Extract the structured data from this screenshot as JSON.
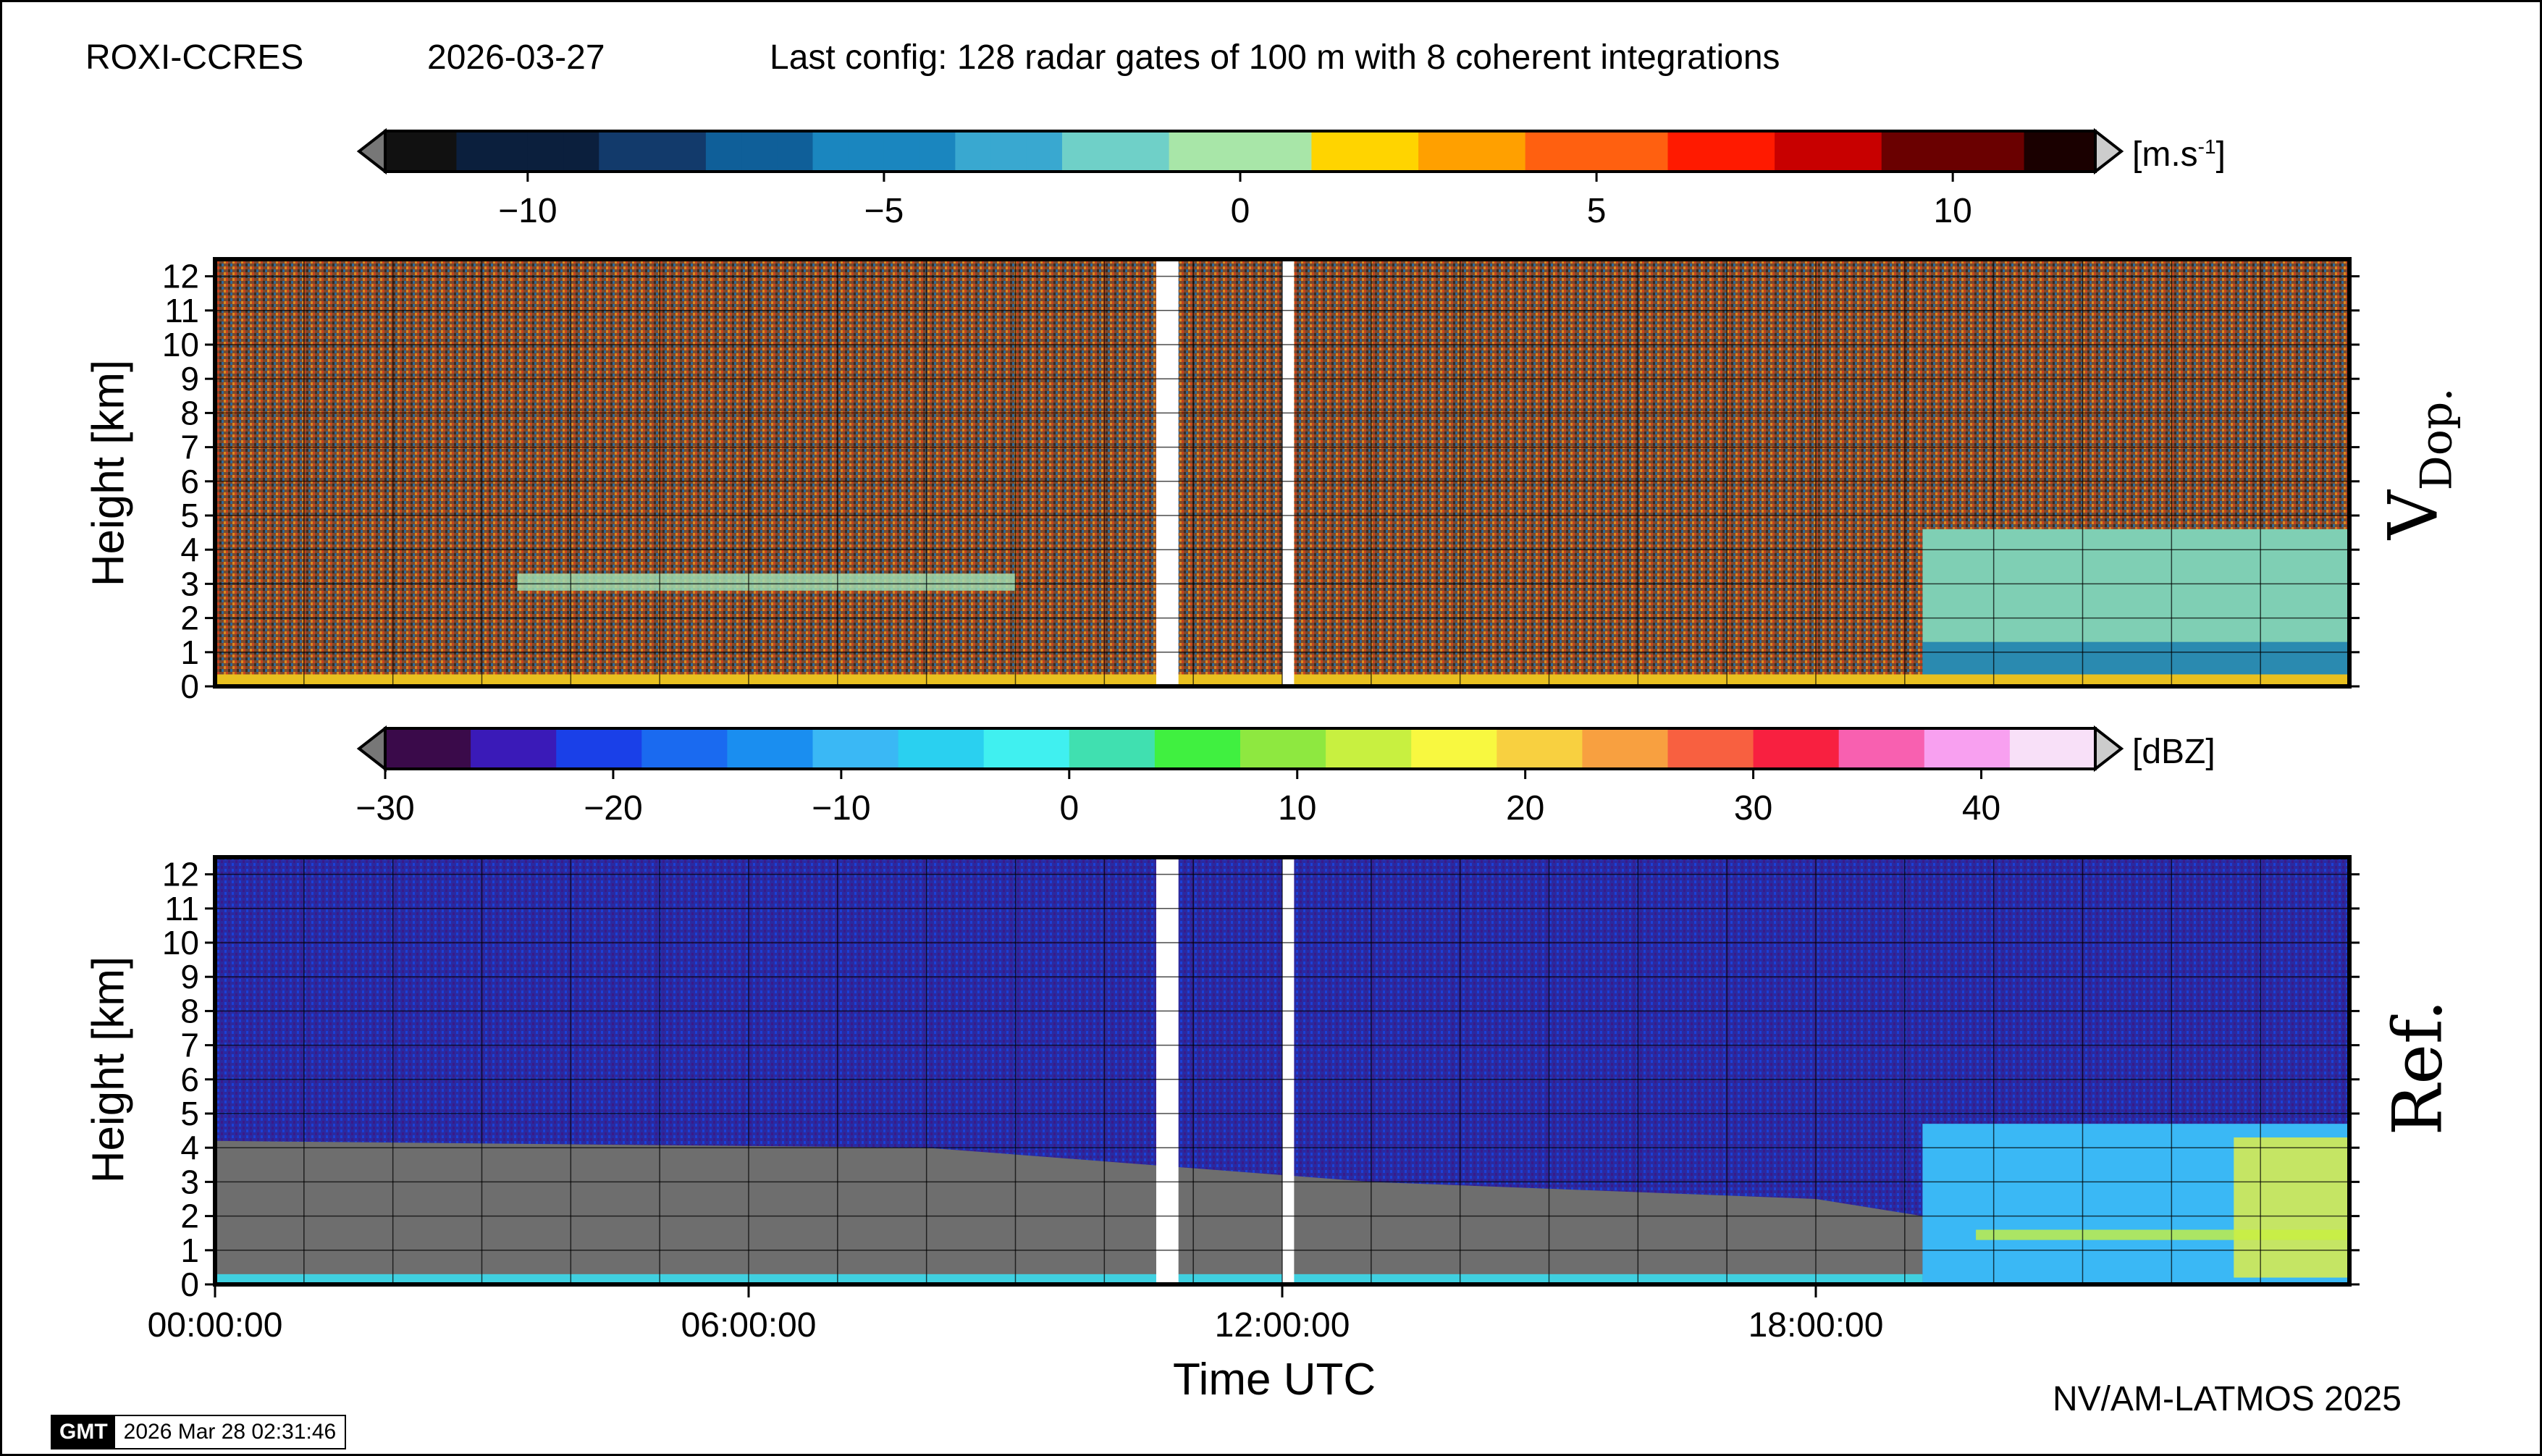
{
  "header": {
    "station": "ROXI-CCRES",
    "date": "2026-03-27",
    "config": "Last config: 128 radar gates of 100 m with 8 coherent integrations"
  },
  "colorbar_doppler": {
    "unit": "[m.s",
    "unit_sup": "-1",
    "unit_close": "]",
    "range": [
      -12,
      12
    ],
    "ticks": [
      "−10",
      "−5",
      "0",
      "5",
      "10"
    ],
    "tick_values": [
      -10,
      -5,
      0,
      5,
      10
    ],
    "stops": [
      "#111111",
      "#0b1f3d",
      "#123a6b",
      "#0f5f99",
      "#1a86bf",
      "#39a8d0",
      "#6fd0c8",
      "#a8e6a8",
      "#ffd400",
      "#ffa000",
      "#ff6010",
      "#ff1a00",
      "#c80000",
      "#6a0000",
      "#1a0000"
    ]
  },
  "colorbar_reflectivity": {
    "unit": "[dBZ]",
    "range": [
      -30,
      45
    ],
    "ticks": [
      "−30",
      "−20",
      "−10",
      "0",
      "10",
      "20",
      "30",
      "40"
    ],
    "tick_values": [
      -30,
      -20,
      -10,
      0,
      10,
      20,
      30,
      40
    ],
    "bins": [
      "#3a0a4a",
      "#3a1ab8",
      "#1a40e8",
      "#1a6af0",
      "#1a8ef0",
      "#3ab8f5",
      "#2ad0f0",
      "#40f0f0",
      "#40e0b0",
      "#40f040",
      "#8ee840",
      "#c8f040",
      "#f8f840",
      "#f8d040",
      "#f8a040",
      "#f86040",
      "#f82040",
      "#f860b0",
      "#f8a0f0",
      "#f8e0f8"
    ]
  },
  "chart_data": [
    {
      "type": "heatmap",
      "panel_label": "V",
      "panel_label_sub": "Dop.",
      "ylabel": "Height [km]",
      "ylim": [
        0,
        12.5
      ],
      "yticks": [
        "0",
        "1",
        "2",
        "3",
        "4",
        "5",
        "6",
        "7",
        "8",
        "9",
        "10",
        "11",
        "12"
      ],
      "xlim_hours": [
        0,
        24
      ],
      "data_gaps_utc": [
        [
          "10:35",
          "10:50"
        ],
        [
          "12:00",
          "12:08"
        ]
      ]
    },
    {
      "type": "heatmap",
      "panel_label": "Ref.",
      "ylabel": "Height [km]",
      "xlabel": "Time UTC",
      "ylim": [
        0,
        12.5
      ],
      "yticks": [
        "0",
        "1",
        "2",
        "3",
        "4",
        "5",
        "6",
        "7",
        "8",
        "9",
        "10",
        "11",
        "12"
      ],
      "xticks": [
        "00:00:00",
        "06:00:00",
        "12:00:00",
        "18:00:00"
      ],
      "xtick_hours": [
        0,
        6,
        12,
        18
      ],
      "xlim_hours": [
        0,
        24
      ],
      "data_gaps_utc": [
        [
          "10:35",
          "10:50"
        ],
        [
          "12:00",
          "12:08"
        ]
      ]
    }
  ],
  "footer": {
    "credit": "NV/AM-LATMOS 2025",
    "gmt_logo": "GMT",
    "timestamp": "2026 Mar 28 02:31:46"
  }
}
